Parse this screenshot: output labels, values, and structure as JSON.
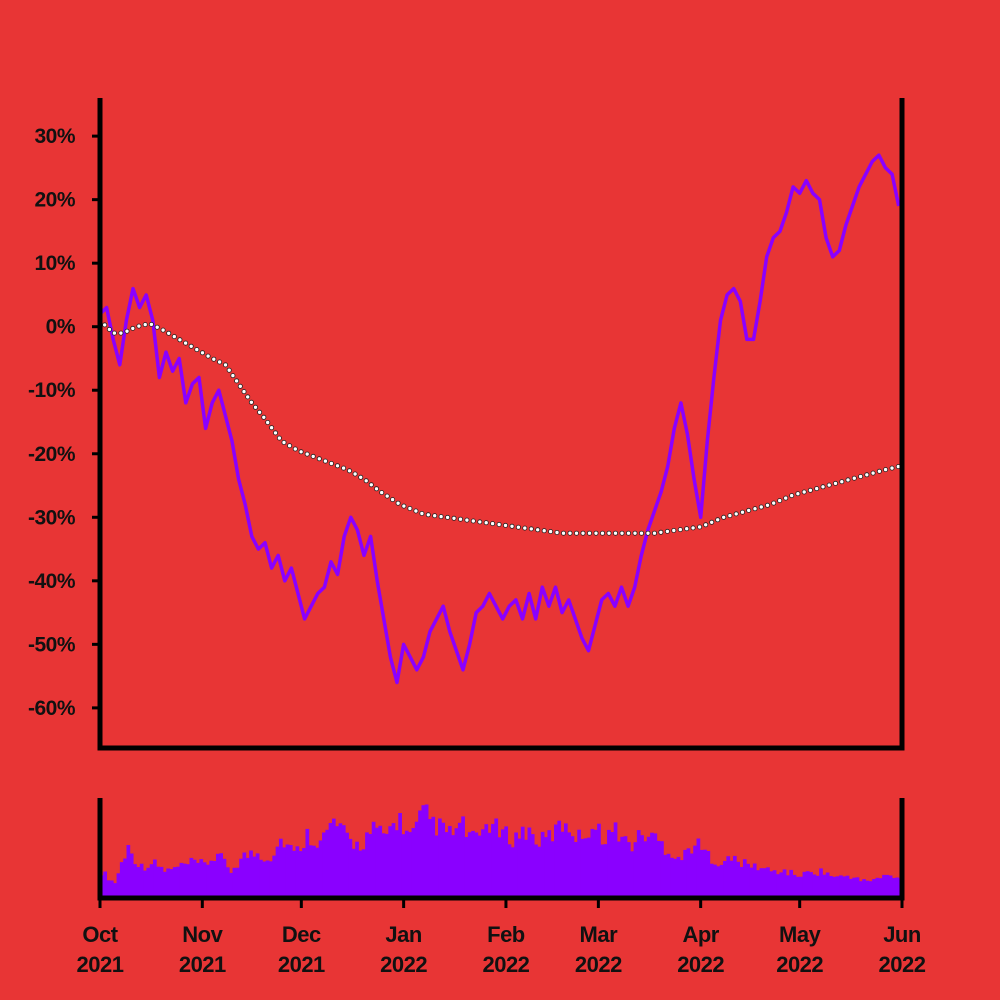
{
  "chart_data": {
    "type": "line",
    "y_unit": "%",
    "y_tick_values": [
      30,
      20,
      10,
      0,
      -10,
      -20,
      -30,
      -40,
      -50,
      -60
    ],
    "y_tick_labels": [
      "30%",
      "20%",
      "10%",
      "0%",
      "-10%",
      "-20%",
      "-30%",
      "-40%",
      "-50%",
      "-60%"
    ],
    "ylim": [
      -66,
      36
    ],
    "xlim": [
      "2021-10-01",
      "2022-06-01"
    ],
    "x_ticks": [
      {
        "date": "2021-10-01",
        "line1": "Oct",
        "line2": "2021"
      },
      {
        "date": "2021-11-01",
        "line1": "Nov",
        "line2": "2021"
      },
      {
        "date": "2021-12-01",
        "line1": "Dec",
        "line2": "2021"
      },
      {
        "date": "2022-01-01",
        "line1": "Jan",
        "line2": "2022"
      },
      {
        "date": "2022-02-01",
        "line1": "Feb",
        "line2": "2022"
      },
      {
        "date": "2022-03-01",
        "line1": "Mar",
        "line2": "2022"
      },
      {
        "date": "2022-04-01",
        "line1": "Apr",
        "line2": "2022"
      },
      {
        "date": "2022-05-01",
        "line1": "May",
        "line2": "2022"
      },
      {
        "date": "2022-06-01",
        "line1": "Jun",
        "line2": "2022"
      }
    ],
    "grid": false,
    "legend": "none",
    "series": [
      {
        "kind": "line",
        "color": "#8a00ff",
        "points": [
          [
            "2021-10-01",
            2
          ],
          [
            "2021-10-03",
            3
          ],
          [
            "2021-10-05",
            -2
          ],
          [
            "2021-10-07",
            -6
          ],
          [
            "2021-10-09",
            1
          ],
          [
            "2021-10-11",
            6
          ],
          [
            "2021-10-13",
            3
          ],
          [
            "2021-10-15",
            5
          ],
          [
            "2021-10-17",
            1
          ],
          [
            "2021-10-19",
            -8
          ],
          [
            "2021-10-21",
            -4
          ],
          [
            "2021-10-23",
            -7
          ],
          [
            "2021-10-25",
            -5
          ],
          [
            "2021-10-27",
            -12
          ],
          [
            "2021-10-29",
            -9
          ],
          [
            "2021-10-31",
            -8
          ],
          [
            "2021-11-02",
            -16
          ],
          [
            "2021-11-04",
            -12
          ],
          [
            "2021-11-06",
            -10
          ],
          [
            "2021-11-08",
            -14
          ],
          [
            "2021-11-10",
            -18
          ],
          [
            "2021-11-12",
            -24
          ],
          [
            "2021-11-14",
            -28
          ],
          [
            "2021-11-16",
            -33
          ],
          [
            "2021-11-18",
            -35
          ],
          [
            "2021-11-20",
            -34
          ],
          [
            "2021-11-22",
            -38
          ],
          [
            "2021-11-24",
            -36
          ],
          [
            "2021-11-26",
            -40
          ],
          [
            "2021-11-28",
            -38
          ],
          [
            "2021-11-30",
            -42
          ],
          [
            "2021-12-02",
            -46
          ],
          [
            "2021-12-04",
            -44
          ],
          [
            "2021-12-06",
            -42
          ],
          [
            "2021-12-08",
            -41
          ],
          [
            "2021-12-10",
            -37
          ],
          [
            "2021-12-12",
            -39
          ],
          [
            "2021-12-14",
            -33
          ],
          [
            "2021-12-16",
            -30
          ],
          [
            "2021-12-18",
            -32
          ],
          [
            "2021-12-20",
            -36
          ],
          [
            "2021-12-22",
            -33
          ],
          [
            "2021-12-24",
            -40
          ],
          [
            "2021-12-26",
            -46
          ],
          [
            "2021-12-28",
            -52
          ],
          [
            "2021-12-30",
            -56
          ],
          [
            "2022-01-01",
            -50
          ],
          [
            "2022-01-03",
            -52
          ],
          [
            "2022-01-05",
            -54
          ],
          [
            "2022-01-07",
            -52
          ],
          [
            "2022-01-09",
            -48
          ],
          [
            "2022-01-11",
            -46
          ],
          [
            "2022-01-13",
            -44
          ],
          [
            "2022-01-15",
            -48
          ],
          [
            "2022-01-17",
            -51
          ],
          [
            "2022-01-19",
            -54
          ],
          [
            "2022-01-21",
            -50
          ],
          [
            "2022-01-23",
            -45
          ],
          [
            "2022-01-25",
            -44
          ],
          [
            "2022-01-27",
            -42
          ],
          [
            "2022-01-29",
            -44
          ],
          [
            "2022-01-31",
            -46
          ],
          [
            "2022-02-02",
            -44
          ],
          [
            "2022-02-04",
            -43
          ],
          [
            "2022-02-06",
            -46
          ],
          [
            "2022-02-08",
            -42
          ],
          [
            "2022-02-10",
            -46
          ],
          [
            "2022-02-12",
            -41
          ],
          [
            "2022-02-14",
            -44
          ],
          [
            "2022-02-16",
            -41
          ],
          [
            "2022-02-18",
            -45
          ],
          [
            "2022-02-20",
            -43
          ],
          [
            "2022-02-22",
            -46
          ],
          [
            "2022-02-24",
            -49
          ],
          [
            "2022-02-26",
            -51
          ],
          [
            "2022-02-28",
            -47
          ],
          [
            "2022-03-02",
            -43
          ],
          [
            "2022-03-04",
            -42
          ],
          [
            "2022-03-06",
            -44
          ],
          [
            "2022-03-08",
            -41
          ],
          [
            "2022-03-10",
            -44
          ],
          [
            "2022-03-12",
            -41
          ],
          [
            "2022-03-14",
            -36
          ],
          [
            "2022-03-16",
            -32
          ],
          [
            "2022-03-18",
            -29
          ],
          [
            "2022-03-20",
            -26
          ],
          [
            "2022-03-22",
            -22
          ],
          [
            "2022-03-24",
            -16
          ],
          [
            "2022-03-26",
            -12
          ],
          [
            "2022-03-28",
            -17
          ],
          [
            "2022-03-30",
            -24
          ],
          [
            "2022-04-01",
            -30
          ],
          [
            "2022-04-03",
            -18
          ],
          [
            "2022-04-05",
            -8
          ],
          [
            "2022-04-07",
            1
          ],
          [
            "2022-04-09",
            5
          ],
          [
            "2022-04-11",
            6
          ],
          [
            "2022-04-13",
            4
          ],
          [
            "2022-04-15",
            -2
          ],
          [
            "2022-04-17",
            -2
          ],
          [
            "2022-04-19",
            4
          ],
          [
            "2022-04-21",
            11
          ],
          [
            "2022-04-23",
            14
          ],
          [
            "2022-04-25",
            15
          ],
          [
            "2022-04-27",
            18
          ],
          [
            "2022-04-29",
            22
          ],
          [
            "2022-05-01",
            21
          ],
          [
            "2022-05-03",
            23
          ],
          [
            "2022-05-05",
            21
          ],
          [
            "2022-05-07",
            20
          ],
          [
            "2022-05-09",
            14
          ],
          [
            "2022-05-11",
            11
          ],
          [
            "2022-05-13",
            12
          ],
          [
            "2022-05-15",
            16
          ],
          [
            "2022-05-17",
            19
          ],
          [
            "2022-05-19",
            22
          ],
          [
            "2022-05-21",
            24
          ],
          [
            "2022-05-23",
            26
          ],
          [
            "2022-05-25",
            27
          ],
          [
            "2022-05-27",
            25
          ],
          [
            "2022-05-29",
            24
          ],
          [
            "2022-05-31",
            19
          ]
        ]
      },
      {
        "kind": "dotted-line",
        "color": "#ffffff",
        "edge_color": "#222222",
        "points": [
          [
            "2021-10-01",
            1
          ],
          [
            "2021-10-05",
            -1
          ],
          [
            "2021-10-08",
            -1
          ],
          [
            "2021-10-12",
            0
          ],
          [
            "2021-10-16",
            0.5
          ],
          [
            "2021-10-20",
            -0.5
          ],
          [
            "2021-10-25",
            -2
          ],
          [
            "2021-10-30",
            -3.5
          ],
          [
            "2021-11-04",
            -5
          ],
          [
            "2021-11-08",
            -6
          ],
          [
            "2021-11-12",
            -9
          ],
          [
            "2021-11-16",
            -12
          ],
          [
            "2021-11-20",
            -14.5
          ],
          [
            "2021-11-25",
            -18
          ],
          [
            "2021-11-30",
            -19.5
          ],
          [
            "2021-12-05",
            -20.5
          ],
          [
            "2021-12-10",
            -21.5
          ],
          [
            "2021-12-15",
            -22.5
          ],
          [
            "2021-12-20",
            -24
          ],
          [
            "2021-12-25",
            -26
          ],
          [
            "2021-12-31",
            -28
          ],
          [
            "2022-01-07",
            -29.5
          ],
          [
            "2022-01-14",
            -30
          ],
          [
            "2022-01-21",
            -30.5
          ],
          [
            "2022-01-28",
            -31
          ],
          [
            "2022-02-04",
            -31.5
          ],
          [
            "2022-02-11",
            -32
          ],
          [
            "2022-02-18",
            -32.5
          ],
          [
            "2022-02-25",
            -32.5
          ],
          [
            "2022-03-04",
            -32.5
          ],
          [
            "2022-03-11",
            -32.5
          ],
          [
            "2022-03-18",
            -32.5
          ],
          [
            "2022-03-25",
            -32
          ],
          [
            "2022-04-01",
            -31.5
          ],
          [
            "2022-04-08",
            -30
          ],
          [
            "2022-04-15",
            -29
          ],
          [
            "2022-04-22",
            -28
          ],
          [
            "2022-04-29",
            -26.5
          ],
          [
            "2022-05-06",
            -25.5
          ],
          [
            "2022-05-13",
            -24.5
          ],
          [
            "2022-05-20",
            -23.5
          ],
          [
            "2022-05-27",
            -22.5
          ],
          [
            "2022-05-31",
            -22
          ]
        ]
      },
      {
        "kind": "volume-bars",
        "color": "#8a00ff",
        "relative_values": [
          [
            30,
            15,
            60,
            35,
            40,
            30,
            35
          ],
          [
            40,
            38,
            50,
            30,
            48,
            52,
            45
          ],
          [
            70,
            50,
            75,
            65,
            90,
            70,
            60
          ],
          [
            80,
            72,
            95,
            70,
            100,
            85,
            75
          ],
          [
            85,
            65,
            90,
            75,
            70,
            80,
            65
          ],
          [
            75,
            90,
            70,
            85,
            72,
            80,
            60
          ],
          [
            75,
            70,
            55,
            45,
            65,
            50,
            40
          ],
          [
            45,
            38,
            35,
            30,
            30,
            25,
            28
          ],
          [
            30,
            22,
            25,
            18,
            20,
            25,
            20
          ]
        ]
      }
    ]
  }
}
